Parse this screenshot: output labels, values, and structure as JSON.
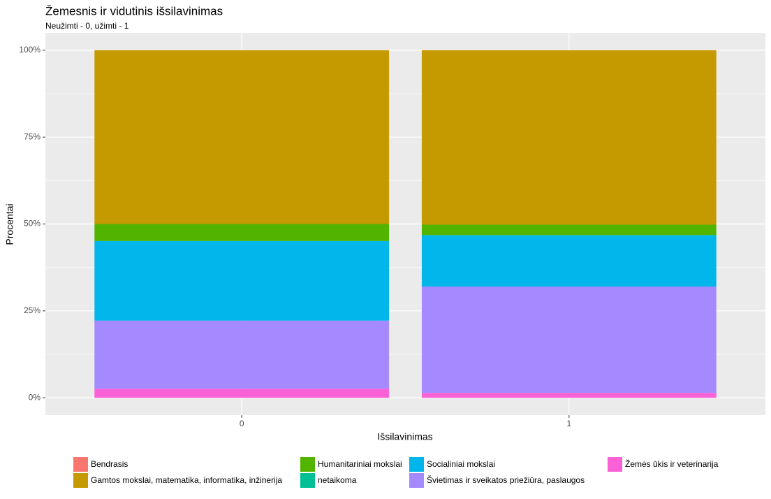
{
  "chart_data": {
    "type": "stacked-bar-percent",
    "title": "Žemesnis ir vidutinis išsilavinimas",
    "subtitle": "Neužimti - 0, užimti - 1",
    "x_label": "Išsilavinimas",
    "y_label": "Procentai",
    "categories": [
      "0",
      "1"
    ],
    "series": [
      {
        "name": "Bendrasis",
        "color": "#F8766D",
        "values": [
          0,
          0
        ]
      },
      {
        "name": "Gamtos mokslai, matematika, informatika, inžinerija",
        "color": "#C49A00",
        "values": [
          50.0,
          50.2
        ]
      },
      {
        "name": "Humanitariniai mokslai",
        "color": "#53B400",
        "values": [
          4.9,
          3.0
        ]
      },
      {
        "name": "netaikoma",
        "color": "#00C094",
        "values": [
          0,
          0
        ]
      },
      {
        "name": "Socialiniai mokslai",
        "color": "#00B6EB",
        "values": [
          22.9,
          14.8
        ]
      },
      {
        "name": "Švietimas ir sveikatos priežiūra, paslaugos",
        "color": "#A58AFF",
        "values": [
          19.6,
          30.6
        ]
      },
      {
        "name": "Žemės ūkis ir veterinarija",
        "color": "#FB61D7",
        "values": [
          2.6,
          1.4
        ]
      }
    ],
    "ylim": [
      -5,
      105
    ],
    "yticks": [
      {
        "value": 0,
        "label": "0%"
      },
      {
        "value": 25,
        "label": "25%"
      },
      {
        "value": 50,
        "label": "50%"
      },
      {
        "value": 75,
        "label": "75%"
      },
      {
        "value": 100,
        "label": "100%"
      }
    ],
    "grid": true,
    "legend_position": "bottom"
  }
}
